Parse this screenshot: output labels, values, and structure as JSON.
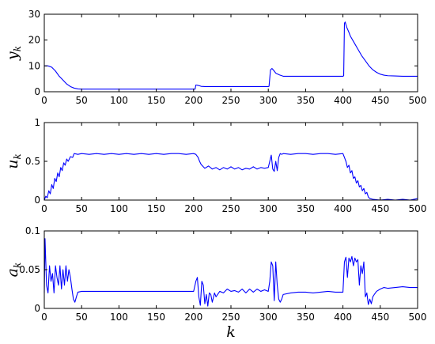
{
  "chart_data": [
    {
      "type": "line",
      "ylabel": "y",
      "ylabel_sub": "k",
      "xlabel": "",
      "xlim": [
        0,
        500
      ],
      "ylim": [
        0,
        30
      ],
      "xticks": [
        "0",
        "50",
        "100",
        "150",
        "200",
        "250",
        "300",
        "350",
        "400",
        "450",
        "500"
      ],
      "yticks": [
        "0",
        "10",
        "20",
        "30"
      ],
      "color": "#0000ff",
      "series": [
        {
          "x": [
            0,
            5,
            10,
            15,
            20,
            25,
            30,
            35,
            40,
            45,
            50,
            100,
            150,
            200,
            202,
            203,
            205,
            208,
            210,
            215,
            220,
            250,
            280,
            300,
            301,
            303,
            305,
            308,
            310,
            315,
            320,
            350,
            380,
            400,
            401,
            402,
            403,
            404,
            405,
            408,
            410,
            415,
            420,
            425,
            430,
            435,
            440,
            445,
            450,
            455,
            460,
            470,
            480,
            490,
            500
          ],
          "y": [
            10,
            10,
            9.5,
            8,
            6,
            4.5,
            3,
            2,
            1.4,
            1.1,
            1,
            1,
            1,
            1,
            1,
            2.6,
            2.5,
            2.3,
            2.1,
            2,
            2,
            2,
            2,
            2,
            2.1,
            8.5,
            9,
            8,
            7.2,
            6.5,
            6,
            6,
            6,
            6,
            6.2,
            26.5,
            27,
            26,
            25,
            23,
            21.5,
            19,
            16.5,
            14,
            12,
            10,
            8.5,
            7.5,
            6.8,
            6.4,
            6.2,
            6.1,
            6,
            6,
            6
          ]
        }
      ]
    },
    {
      "type": "line",
      "ylabel": "u",
      "ylabel_sub": "k",
      "xlabel": "",
      "xlim": [
        0,
        500
      ],
      "ylim": [
        0,
        1
      ],
      "xticks": [
        "0",
        "50",
        "100",
        "150",
        "200",
        "250",
        "300",
        "350",
        "400",
        "450",
        "500"
      ],
      "yticks": [
        "0",
        "0.5",
        "1"
      ],
      "color": "#0000ff",
      "series": [
        {
          "x": [
            0,
            2,
            4,
            6,
            8,
            10,
            12,
            14,
            16,
            18,
            20,
            22,
            24,
            26,
            28,
            30,
            32,
            35,
            38,
            40,
            45,
            50,
            60,
            70,
            80,
            90,
            100,
            110,
            120,
            130,
            140,
            150,
            160,
            170,
            180,
            190,
            200,
            203,
            206,
            208,
            210,
            213,
            215,
            220,
            225,
            230,
            235,
            240,
            245,
            250,
            255,
            260,
            265,
            270,
            275,
            280,
            285,
            290,
            295,
            300,
            302,
            304,
            306,
            308,
            310,
            312,
            314,
            316,
            318,
            320,
            330,
            340,
            350,
            360,
            370,
            380,
            390,
            400,
            402,
            404,
            406,
            408,
            410,
            412,
            414,
            416,
            418,
            420,
            422,
            424,
            426,
            428,
            430,
            432,
            434,
            436,
            440,
            450,
            460,
            470,
            480,
            490,
            500
          ],
          "y": [
            0,
            0.05,
            0.03,
            0.12,
            0.08,
            0.2,
            0.15,
            0.28,
            0.24,
            0.35,
            0.3,
            0.42,
            0.38,
            0.48,
            0.45,
            0.53,
            0.5,
            0.56,
            0.55,
            0.6,
            0.59,
            0.6,
            0.59,
            0.6,
            0.59,
            0.6,
            0.59,
            0.6,
            0.59,
            0.6,
            0.59,
            0.6,
            0.59,
            0.6,
            0.6,
            0.59,
            0.6,
            0.59,
            0.55,
            0.5,
            0.46,
            0.43,
            0.41,
            0.44,
            0.4,
            0.42,
            0.39,
            0.42,
            0.4,
            0.43,
            0.4,
            0.42,
            0.39,
            0.41,
            0.4,
            0.43,
            0.4,
            0.42,
            0.41,
            0.42,
            0.5,
            0.58,
            0.4,
            0.37,
            0.5,
            0.38,
            0.55,
            0.6,
            0.59,
            0.6,
            0.59,
            0.6,
            0.6,
            0.59,
            0.6,
            0.6,
            0.59,
            0.6,
            0.55,
            0.5,
            0.42,
            0.45,
            0.35,
            0.38,
            0.28,
            0.3,
            0.22,
            0.25,
            0.17,
            0.19,
            0.12,
            0.15,
            0.08,
            0.1,
            0.04,
            0.02,
            0.01,
            0,
            0.01,
            0,
            0.01,
            0,
            0.02
          ]
        }
      ]
    },
    {
      "type": "line",
      "ylabel": "a",
      "ylabel_sub": "k",
      "xlabel": "k",
      "xlim": [
        0,
        500
      ],
      "ylim": [
        0,
        0.1
      ],
      "xticks": [
        "0",
        "50",
        "100",
        "150",
        "200",
        "250",
        "300",
        "350",
        "400",
        "450",
        "500"
      ],
      "yticks": [
        "0",
        "0.05",
        "0.1"
      ],
      "color": "#0000ff",
      "series": [
        {
          "x": [
            0,
            1,
            2,
            3,
            5,
            7,
            9,
            11,
            13,
            15,
            17,
            19,
            21,
            23,
            25,
            27,
            29,
            31,
            33,
            35,
            37,
            39,
            41,
            43,
            45,
            50,
            100,
            150,
            200,
            203,
            205,
            207,
            209,
            211,
            213,
            215,
            217,
            219,
            221,
            223,
            225,
            228,
            230,
            235,
            240,
            245,
            250,
            255,
            260,
            265,
            270,
            275,
            280,
            285,
            290,
            295,
            300,
            302,
            304,
            306,
            308,
            310,
            312,
            314,
            316,
            318,
            320,
            330,
            340,
            350,
            360,
            370,
            380,
            390,
            400,
            402,
            404,
            406,
            408,
            410,
            412,
            414,
            416,
            418,
            420,
            422,
            424,
            426,
            428,
            430,
            432,
            434,
            436,
            438,
            440,
            442,
            445,
            450,
            455,
            460,
            470,
            480,
            490,
            500
          ],
          "y": [
            0.02,
            0.09,
            0.06,
            0.03,
            0.02,
            0.055,
            0.035,
            0.045,
            0.02,
            0.055,
            0.04,
            0.03,
            0.055,
            0.025,
            0.05,
            0.03,
            0.055,
            0.035,
            0.05,
            0.04,
            0.025,
            0.012,
            0.008,
            0.015,
            0.021,
            0.022,
            0.022,
            0.022,
            0.022,
            0.035,
            0.04,
            0.015,
            0.004,
            0.035,
            0.03,
            0.006,
            0.018,
            0.003,
            0.02,
            0.018,
            0.008,
            0.02,
            0.015,
            0.022,
            0.02,
            0.025,
            0.022,
            0.023,
            0.021,
            0.025,
            0.02,
            0.025,
            0.021,
            0.025,
            0.022,
            0.024,
            0.022,
            0.035,
            0.06,
            0.055,
            0.01,
            0.06,
            0.03,
            0.012,
            0.008,
            0.012,
            0.018,
            0.02,
            0.021,
            0.021,
            0.02,
            0.021,
            0.022,
            0.021,
            0.021,
            0.06,
            0.066,
            0.04,
            0.065,
            0.06,
            0.067,
            0.055,
            0.065,
            0.06,
            0.063,
            0.03,
            0.055,
            0.045,
            0.06,
            0.015,
            0.02,
            0.005,
            0.012,
            0.006,
            0.015,
            0.018,
            0.022,
            0.025,
            0.027,
            0.026,
            0.027,
            0.028,
            0.027,
            0.027
          ]
        }
      ]
    }
  ]
}
